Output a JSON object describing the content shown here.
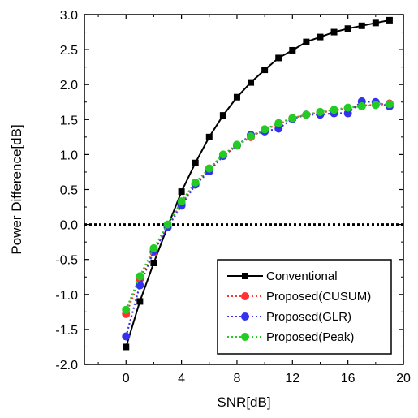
{
  "chart_data": {
    "type": "line",
    "xlabel": "SNR[dB]",
    "ylabel": "Power Difference[dB]",
    "xlim": [
      -3,
      20
    ],
    "ylim": [
      -2.0,
      3.0
    ],
    "xticks": [
      0,
      4,
      8,
      12,
      16,
      20
    ],
    "yticks": [
      -2.0,
      -1.5,
      -1.0,
      -0.5,
      0.0,
      0.5,
      1.0,
      1.5,
      2.0,
      2.5,
      3.0
    ],
    "xtick_labels": [
      "0",
      "4",
      "8",
      "12",
      "16",
      "20"
    ],
    "ytick_labels": [
      "-2.0",
      "-1.5",
      "-1.0",
      "-0.5",
      "0.0",
      "0.5",
      "1.0",
      "1.5",
      "2.0",
      "2.5",
      "3.0"
    ],
    "legend_position": "bottom-right",
    "reference_line": {
      "y": 0.0,
      "style": "dotted",
      "color": "#000000"
    },
    "x": [
      0,
      1,
      2,
      3,
      4,
      5,
      6,
      7,
      8,
      9,
      10,
      11,
      12,
      13,
      14,
      15,
      16,
      17,
      18,
      19
    ],
    "series": [
      {
        "name": "Conventional",
        "color": "#000000",
        "marker": "square",
        "line": "solid",
        "values": [
          -1.75,
          -1.1,
          -0.55,
          -0.03,
          0.47,
          0.88,
          1.25,
          1.56,
          1.82,
          2.03,
          2.21,
          2.38,
          2.49,
          2.61,
          2.68,
          2.75,
          2.8,
          2.84,
          2.88,
          2.92
        ]
      },
      {
        "name": "Proposed(CUSUM)",
        "color": "#ff3333",
        "marker": "circle",
        "line": "dotted",
        "values": [
          -1.28,
          -0.78,
          -0.4,
          -0.02,
          0.3,
          0.58,
          0.8,
          0.98,
          1.13,
          1.25,
          1.36,
          1.43,
          1.52,
          1.57,
          1.6,
          1.63,
          1.66,
          1.7,
          1.71,
          1.73
        ]
      },
      {
        "name": "Proposed(GLR)",
        "color": "#3333ee",
        "marker": "circle",
        "line": "dotted",
        "values": [
          -1.6,
          -0.87,
          -0.38,
          -0.04,
          0.27,
          0.57,
          0.76,
          0.98,
          1.13,
          1.28,
          1.33,
          1.37,
          1.51,
          1.57,
          1.57,
          1.59,
          1.59,
          1.76,
          1.75,
          1.69
        ]
      },
      {
        "name": "Proposed(Peak)",
        "color": "#22cc22",
        "marker": "circle",
        "line": "dotted",
        "values": [
          -1.22,
          -0.74,
          -0.34,
          0.0,
          0.33,
          0.6,
          0.8,
          1.0,
          1.14,
          1.26,
          1.36,
          1.45,
          1.52,
          1.57,
          1.61,
          1.64,
          1.67,
          1.69,
          1.71,
          1.72
        ]
      }
    ]
  }
}
